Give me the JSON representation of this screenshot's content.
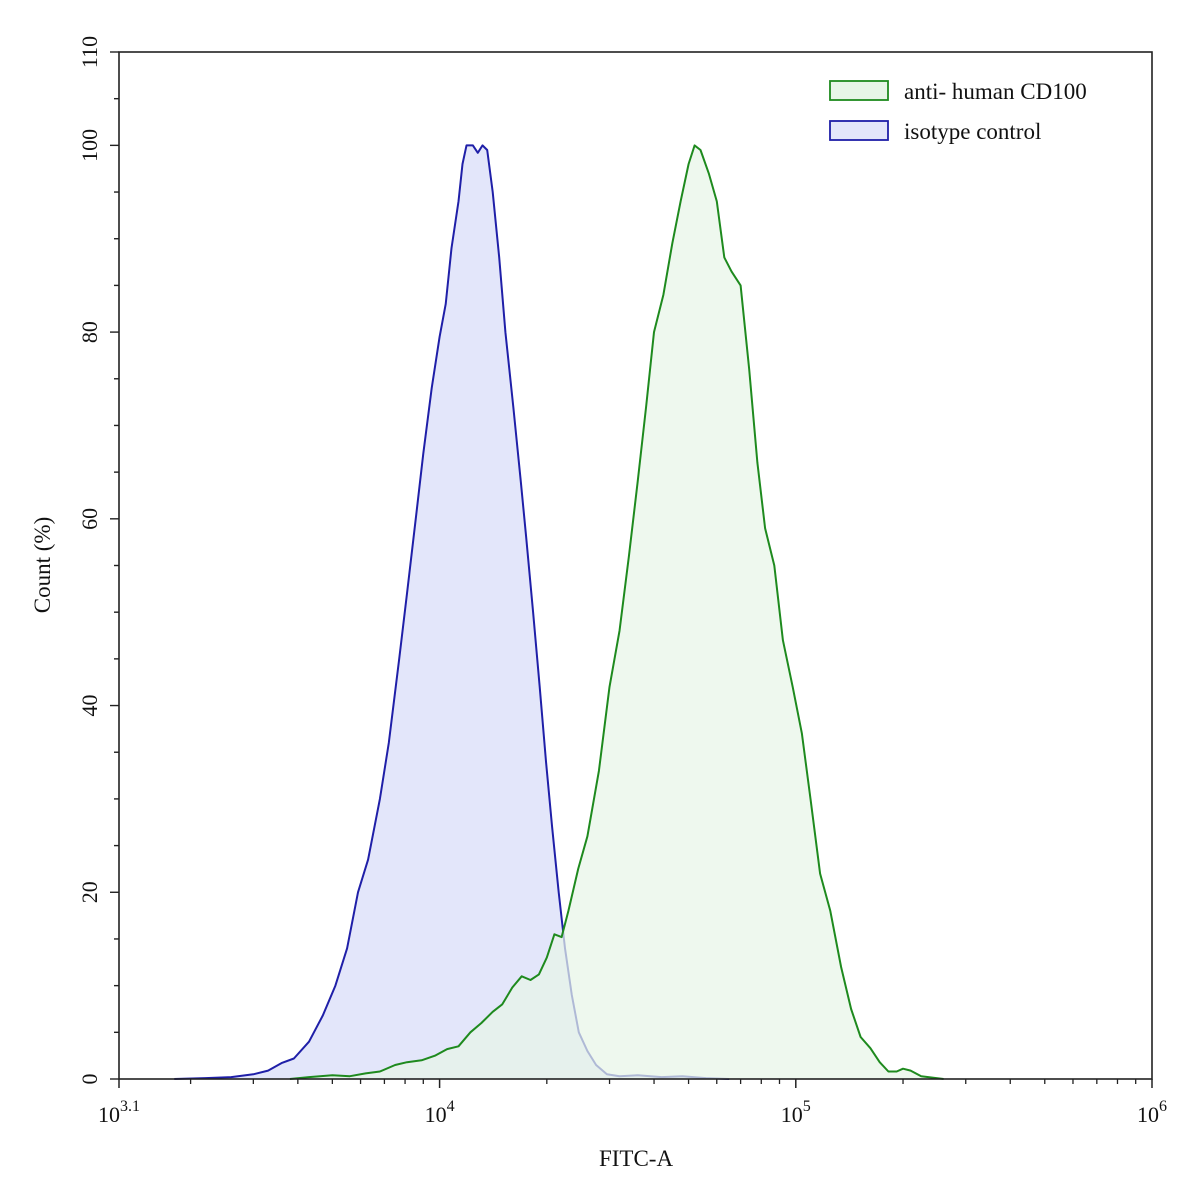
{
  "chart_data": {
    "type": "area",
    "xlabel": "FITC-A",
    "ylabel": "Count  (%)",
    "x_scale": "log10",
    "xlim": [
      1258.9,
      1000000
    ],
    "ylim": [
      0,
      110
    ],
    "x_ticks": [
      {
        "value": 1258.9,
        "base": "10",
        "exp": "3.1"
      },
      {
        "value": 10000,
        "base": "10",
        "exp": "4"
      },
      {
        "value": 100000,
        "base": "10",
        "exp": "5"
      },
      {
        "value": 1000000,
        "base": "10",
        "exp": "6"
      }
    ],
    "y_ticks": [
      0,
      20,
      40,
      60,
      80,
      100,
      110
    ],
    "y_minor_step": 5,
    "legend_position": "top-right",
    "series": [
      {
        "name": "isotype control",
        "stroke": "#1f1fa8",
        "fill": "#e3e6fa",
        "points": [
          [
            1800,
            0
          ],
          [
            2200,
            0.1
          ],
          [
            2600,
            0.2
          ],
          [
            3000,
            0.5
          ],
          [
            3300,
            0.9
          ],
          [
            3600,
            1.7
          ],
          [
            3900,
            2.2
          ],
          [
            4300,
            4.0
          ],
          [
            4700,
            6.8
          ],
          [
            5100,
            10.0
          ],
          [
            5500,
            14.0
          ],
          [
            5900,
            20.0
          ],
          [
            6300,
            23.5
          ],
          [
            6800,
            30.0
          ],
          [
            7200,
            36.0
          ],
          [
            7700,
            45.0
          ],
          [
            8100,
            52.0
          ],
          [
            8600,
            60.5
          ],
          [
            9000,
            67.0
          ],
          [
            9500,
            74.0
          ],
          [
            10000,
            79.5
          ],
          [
            10400,
            83.0
          ],
          [
            10800,
            89.0
          ],
          [
            11300,
            94.0
          ],
          [
            11600,
            98.0
          ],
          [
            11900,
            100.0
          ],
          [
            12400,
            100.0
          ],
          [
            12800,
            99.2
          ],
          [
            13200,
            100.0
          ],
          [
            13600,
            99.5
          ],
          [
            14100,
            95.0
          ],
          [
            14700,
            88.0
          ],
          [
            15300,
            80.0
          ],
          [
            16100,
            72.0
          ],
          [
            16900,
            64.0
          ],
          [
            17500,
            58.0
          ],
          [
            18300,
            50.0
          ],
          [
            19100,
            42.0
          ],
          [
            19900,
            34.0
          ],
          [
            20700,
            27.0
          ],
          [
            21600,
            20.0
          ],
          [
            22500,
            14.0
          ],
          [
            23500,
            9.0
          ],
          [
            24600,
            5.0
          ],
          [
            26000,
            3.0
          ],
          [
            27500,
            1.5
          ],
          [
            29500,
            0.5
          ],
          [
            32000,
            0.3
          ],
          [
            36000,
            0.4
          ],
          [
            42000,
            0.2
          ],
          [
            48000,
            0.3
          ],
          [
            56000,
            0.1
          ],
          [
            65000,
            0
          ]
        ]
      },
      {
        "name": "anti- human CD100",
        "stroke": "#1e8a1e",
        "fill": "#e7f5e7",
        "points": [
          [
            3800,
            0
          ],
          [
            4300,
            0.2
          ],
          [
            5000,
            0.4
          ],
          [
            5600,
            0.3
          ],
          [
            6200,
            0.6
          ],
          [
            6800,
            0.8
          ],
          [
            7500,
            1.5
          ],
          [
            8100,
            1.8
          ],
          [
            8900,
            2.0
          ],
          [
            9700,
            2.5
          ],
          [
            10500,
            3.2
          ],
          [
            11300,
            3.5
          ],
          [
            12200,
            5.0
          ],
          [
            13100,
            6.0
          ],
          [
            14100,
            7.2
          ],
          [
            15000,
            8.0
          ],
          [
            16000,
            9.8
          ],
          [
            17000,
            11.0
          ],
          [
            18000,
            10.6
          ],
          [
            19000,
            11.2
          ],
          [
            20000,
            13.0
          ],
          [
            21000,
            15.5
          ],
          [
            22000,
            15.2
          ],
          [
            23000,
            18.0
          ],
          [
            24500,
            22.5
          ],
          [
            26000,
            26.0
          ],
          [
            28000,
            33.0
          ],
          [
            30000,
            42.0
          ],
          [
            32000,
            48.0
          ],
          [
            34000,
            56.0
          ],
          [
            36000,
            64.0
          ],
          [
            38000,
            72.0
          ],
          [
            40000,
            80.0
          ],
          [
            42500,
            84.0
          ],
          [
            45000,
            89.5
          ],
          [
            47500,
            94.0
          ],
          [
            50000,
            98.0
          ],
          [
            52000,
            100.0
          ],
          [
            54000,
            99.5
          ],
          [
            57000,
            97.0
          ],
          [
            60000,
            94.0
          ],
          [
            63000,
            88.0
          ],
          [
            66000,
            86.5
          ],
          [
            70000,
            85.0
          ],
          [
            74000,
            76.0
          ],
          [
            78000,
            66.0
          ],
          [
            82000,
            59.0
          ],
          [
            87000,
            55.0
          ],
          [
            92000,
            47.0
          ],
          [
            98000,
            42.0
          ],
          [
            104000,
            37.0
          ],
          [
            110000,
            30.0
          ],
          [
            117000,
            22.0
          ],
          [
            125000,
            18.0
          ],
          [
            134000,
            12.0
          ],
          [
            143000,
            7.5
          ],
          [
            152000,
            4.5
          ],
          [
            162000,
            3.3
          ],
          [
            172000,
            1.8
          ],
          [
            182000,
            0.8
          ],
          [
            192000,
            0.8
          ],
          [
            200000,
            1.1
          ],
          [
            210000,
            0.9
          ],
          [
            225000,
            0.3
          ],
          [
            260000,
            0
          ]
        ]
      }
    ]
  }
}
